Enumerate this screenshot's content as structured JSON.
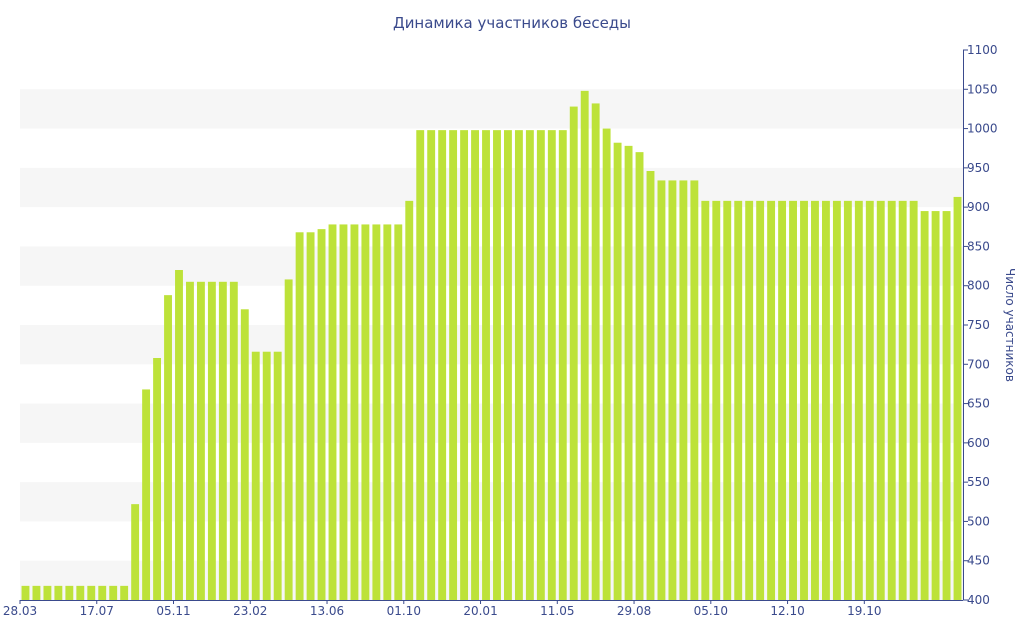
{
  "colors": {
    "bar": "#bde239",
    "axis": "#3a4a8c",
    "band": "#f6f6f6"
  },
  "chart_data": {
    "type": "bar",
    "title": "Динамика участников беседы",
    "ylabel": "Число участников",
    "xlabel": "",
    "ylim": [
      400,
      1100
    ],
    "y_ticks": [
      400,
      450,
      500,
      550,
      600,
      650,
      700,
      750,
      800,
      850,
      900,
      950,
      1000,
      1050,
      1100
    ],
    "y_axis_side": "right",
    "grid": "alternating horizontal bands",
    "legend": "none",
    "x_tick_labels": [
      {
        "label": "28.03",
        "index": 0
      },
      {
        "label": "17.07",
        "index": 7
      },
      {
        "label": "05.11",
        "index": 14
      },
      {
        "label": "23.02",
        "index": 21
      },
      {
        "label": "13.06",
        "index": 28
      },
      {
        "label": "01.10",
        "index": 35
      },
      {
        "label": "20.01",
        "index": 42
      },
      {
        "label": "11.05",
        "index": 49
      },
      {
        "label": "29.08",
        "index": 56
      },
      {
        "label": "05.10",
        "index": 63
      },
      {
        "label": "12.10",
        "index": 70
      },
      {
        "label": "19.10",
        "index": 77
      }
    ],
    "values": [
      418,
      418,
      418,
      418,
      418,
      418,
      418,
      418,
      418,
      418,
      522,
      668,
      708,
      788,
      820,
      805,
      805,
      805,
      805,
      805,
      770,
      716,
      716,
      716,
      808,
      868,
      868,
      872,
      878,
      878,
      878,
      878,
      878,
      878,
      878,
      908,
      998,
      998,
      998,
      998,
      998,
      998,
      998,
      998,
      998,
      998,
      998,
      998,
      998,
      998,
      1028,
      1048,
      1032,
      1000,
      982,
      978,
      970,
      946,
      934,
      934,
      934,
      934,
      908,
      908,
      908,
      908,
      908,
      908,
      908,
      908,
      908,
      908,
      908,
      908,
      908,
      908,
      908,
      908,
      908,
      908,
      908,
      908,
      895,
      895,
      895,
      913
    ]
  }
}
